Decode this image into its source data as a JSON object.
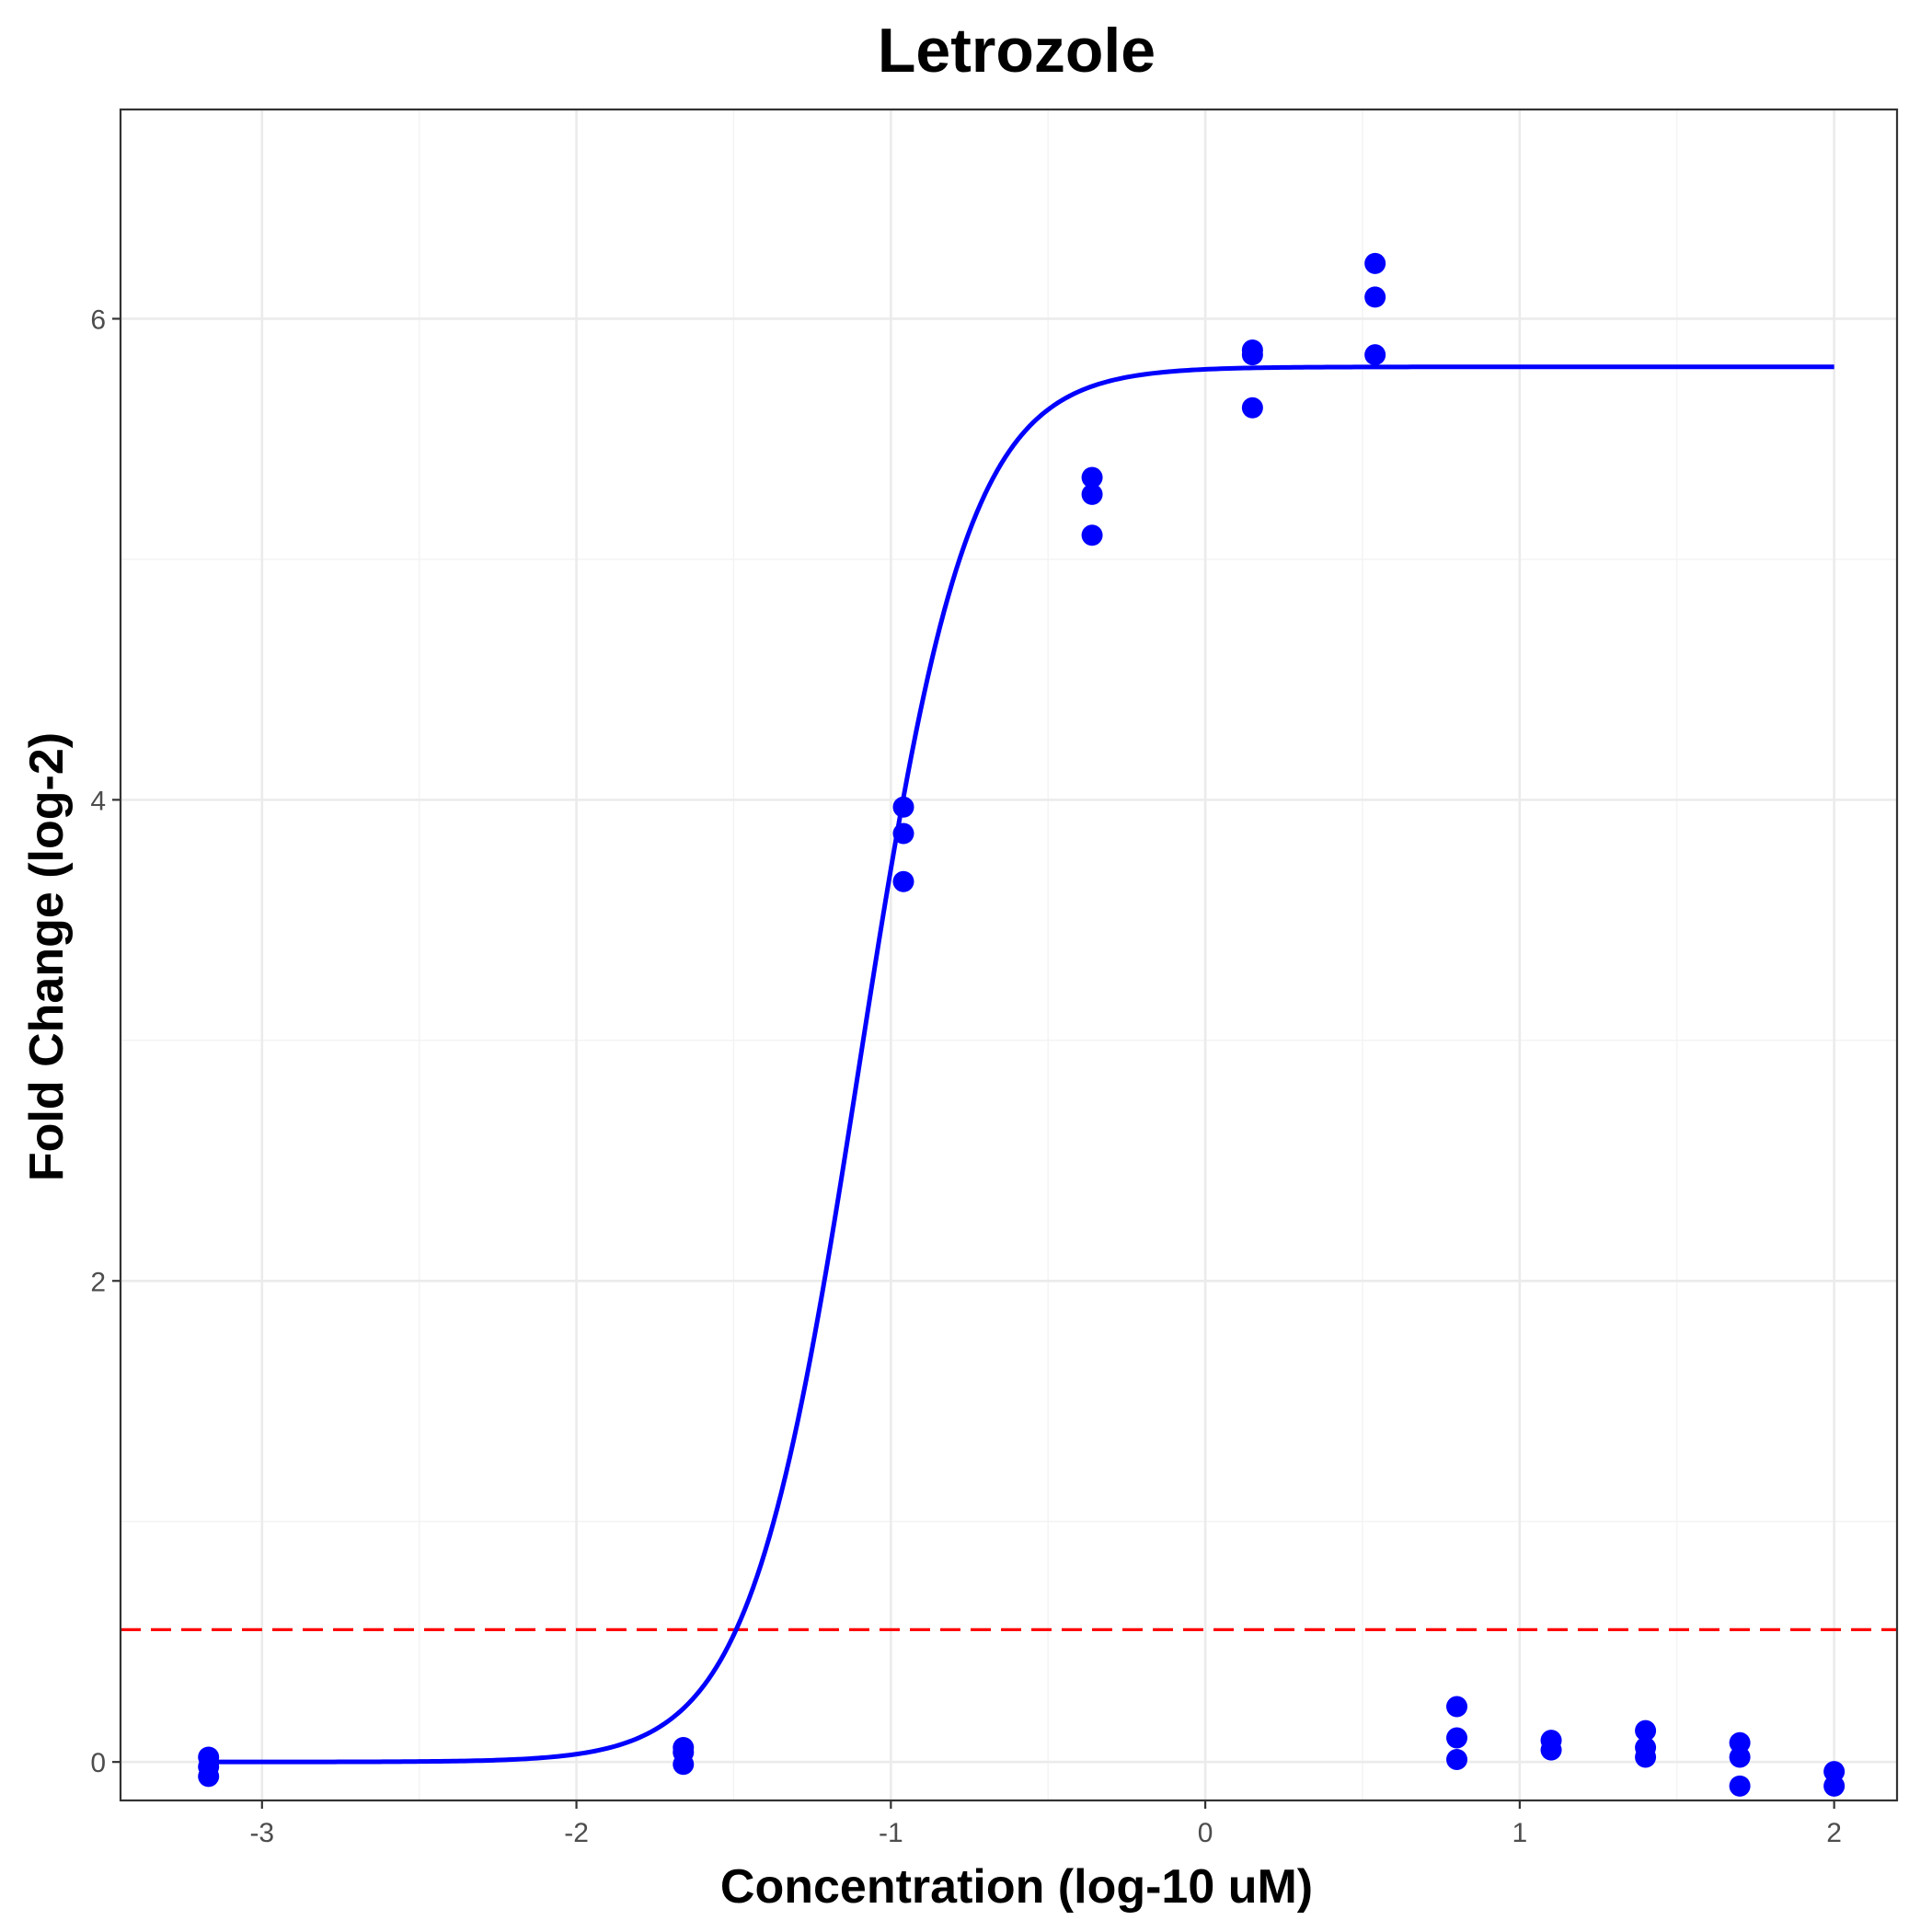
{
  "chart_data": {
    "type": "scatter",
    "title": "Letrozole",
    "xlabel": "Concentration (log-10 uM)",
    "ylabel": "Fold Change (log-2)",
    "xlim": [
      -3.45,
      2.2
    ],
    "ylim": [
      -0.16,
      6.87
    ],
    "x_ticks": [
      -3,
      -2,
      -1,
      0,
      1,
      2
    ],
    "x_tick_labels": [
      "-3",
      "-2",
      "-1",
      "0",
      "1",
      "2"
    ],
    "y_ticks": [
      0,
      2,
      4,
      6
    ],
    "y_tick_labels": [
      "0",
      "2",
      "4",
      "6"
    ],
    "grid": true,
    "legend": "none",
    "colors": {
      "points": "#0000ff",
      "fit_curve": "#0000ff",
      "threshold": "#ff0000",
      "grid_major": "#ebebeb",
      "grid_minor": "#f3f3f3",
      "panel_border": "#333333"
    },
    "threshold_y": 0.55,
    "fit_curve": {
      "model": "logistic",
      "bottom": 0.0,
      "top": 5.8,
      "ec50_log10": -1.1,
      "hill_slope": 2.5,
      "x_range": [
        -3.17,
        2.0
      ]
    },
    "points": [
      {
        "x": -3.17,
        "y": 0.02
      },
      {
        "x": -3.17,
        "y": -0.02
      },
      {
        "x": -3.17,
        "y": -0.06
      },
      {
        "x": -1.66,
        "y": 0.06
      },
      {
        "x": -1.66,
        "y": 0.04
      },
      {
        "x": -1.66,
        "y": -0.01
      },
      {
        "x": -0.96,
        "y": 3.97
      },
      {
        "x": -0.96,
        "y": 3.86
      },
      {
        "x": -0.96,
        "y": 3.66
      },
      {
        "x": -0.36,
        "y": 5.34
      },
      {
        "x": -0.36,
        "y": 5.27
      },
      {
        "x": -0.36,
        "y": 5.1
      },
      {
        "x": 0.15,
        "y": 5.87
      },
      {
        "x": 0.15,
        "y": 5.85
      },
      {
        "x": 0.15,
        "y": 5.63
      },
      {
        "x": 0.54,
        "y": 6.23
      },
      {
        "x": 0.54,
        "y": 6.09
      },
      {
        "x": 0.54,
        "y": 5.85
      },
      {
        "x": 0.8,
        "y": 0.23
      },
      {
        "x": 0.8,
        "y": 0.1
      },
      {
        "x": 0.8,
        "y": 0.01
      },
      {
        "x": 1.1,
        "y": 0.09
      },
      {
        "x": 1.1,
        "y": 0.05
      },
      {
        "x": 1.4,
        "y": 0.13
      },
      {
        "x": 1.4,
        "y": 0.06
      },
      {
        "x": 1.4,
        "y": 0.02
      },
      {
        "x": 1.7,
        "y": 0.08
      },
      {
        "x": 1.7,
        "y": 0.02
      },
      {
        "x": 1.7,
        "y": -0.1
      },
      {
        "x": 2.0,
        "y": -0.04
      },
      {
        "x": 2.0,
        "y": -0.1
      }
    ]
  }
}
